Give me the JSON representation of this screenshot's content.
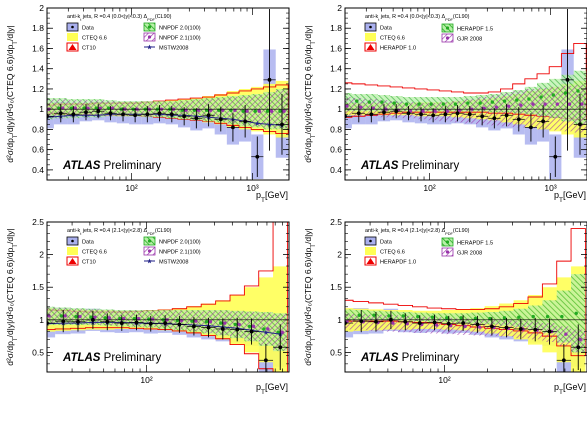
{
  "chart_data": [
    {
      "type": "line",
      "xscale": "log",
      "xlim": [
        20,
        2000
      ],
      "ylim": [
        0.3,
        2.0
      ],
      "yticks": [
        0.4,
        0.6,
        0.8,
        1.0,
        1.2,
        1.4,
        1.6,
        1.8,
        2.0
      ],
      "yticklabels": [
        "0.4",
        "0.6",
        "0.8",
        "1",
        "1.2",
        "1.4",
        "1.6",
        "1.8",
        "2"
      ],
      "xtick_major": [
        100,
        1000
      ],
      "xticklabels": [
        "10²",
        "10³"
      ],
      "xlabel": "p_T[GeV]",
      "ylabel": "d²σ/dp_T/d|y|/d²σ₀(CTEQ 6.6)/dp_T/d|y|",
      "title": "anti-k_t  jets, R =0.4 (0.0<|y|<0.3) Δ_PDF(CL90)",
      "watermark_bold": "ATLAS",
      "watermark": "Preliminary",
      "legend": [
        "Data",
        "CTEQ 6.6",
        "CT10",
        "NNPDF 2.0(100)",
        "NNPDF 2.1(100)",
        "MSTW2008"
      ],
      "x": [
        20,
        26,
        33,
        42,
        53,
        67,
        85,
        107,
        135,
        170,
        215,
        272,
        343,
        433,
        546,
        688,
        868,
        1094,
        1380,
        1750
      ],
      "data": [
        0.93,
        0.96,
        0.95,
        0.97,
        0.98,
        0.96,
        0.95,
        0.94,
        0.95,
        0.96,
        0.95,
        0.93,
        0.91,
        0.94,
        0.9,
        0.82,
        0.88,
        0.53,
        1.29,
        0.85
      ],
      "data_err": [
        0.1,
        0.09,
        0.08,
        0.08,
        0.07,
        0.07,
        0.07,
        0.07,
        0.08,
        0.08,
        0.08,
        0.09,
        0.1,
        0.11,
        0.12,
        0.14,
        0.16,
        0.2,
        0.7,
        0.3
      ],
      "syst": [
        0.12,
        0.11,
        0.1,
        0.09,
        0.09,
        0.09,
        0.09,
        0.09,
        0.1,
        0.1,
        0.1,
        0.11,
        0.12,
        0.13,
        0.15,
        0.17,
        0.2,
        0.22,
        0.3,
        0.33
      ],
      "cteq_up": [
        1.06,
        1.06,
        1.06,
        1.06,
        1.06,
        1.06,
        1.07,
        1.07,
        1.07,
        1.08,
        1.09,
        1.1,
        1.11,
        1.13,
        1.15,
        1.18,
        1.2,
        1.22,
        1.25,
        1.28
      ],
      "ct10_up": [
        1.04,
        1.05,
        1.05,
        1.05,
        1.06,
        1.06,
        1.06,
        1.06,
        1.07,
        1.08,
        1.09,
        1.1,
        1.11,
        1.12,
        1.14,
        1.16,
        1.18,
        1.2,
        1.22,
        1.24
      ],
      "nnpdf_up": [
        1.11,
        1.11,
        1.1,
        1.1,
        1.1,
        1.09,
        1.08,
        1.08,
        1.08,
        1.08,
        1.08,
        1.09,
        1.1,
        1.11,
        1.12,
        1.13,
        1.14,
        1.15,
        1.17,
        1.2
      ],
      "nnpdf_lo": [
        0.9,
        0.91,
        0.91,
        0.92,
        0.92,
        0.93,
        0.93,
        0.93,
        0.92,
        0.92,
        0.91,
        0.9,
        0.89,
        0.88,
        0.87,
        0.85,
        0.83,
        0.82,
        0.8,
        0.8
      ],
      "nnpdf_c": [
        1.0,
        1.01,
        1.01,
        1.01,
        1.01,
        1.01,
        1.0,
        1.0,
        1.0,
        1.0,
        1.0,
        0.99,
        0.99,
        0.99,
        0.99,
        0.99,
        0.98,
        0.98,
        0.98,
        0.98
      ],
      "mstw": [
        0.92,
        0.93,
        0.94,
        0.94,
        0.94,
        0.95,
        0.95,
        0.95,
        0.95,
        0.95,
        0.94,
        0.94,
        0.93,
        0.92,
        0.91,
        0.9,
        0.88,
        0.86,
        0.85,
        0.84
      ]
    },
    {
      "type": "line",
      "xscale": "log",
      "xlim": [
        20,
        2000
      ],
      "ylim": [
        0.3,
        2.0
      ],
      "yticks": [
        0.4,
        0.6,
        0.8,
        1.0,
        1.2,
        1.4,
        1.6,
        1.8,
        2.0
      ],
      "yticklabels": [
        "0.4",
        "0.6",
        "0.8",
        "1",
        "1.2",
        "1.4",
        "1.6",
        "1.8",
        "2"
      ],
      "xtick_major": [
        100,
        1000
      ],
      "xticklabels": [
        "10²",
        "10³"
      ],
      "xlabel": "p_T[GeV]",
      "ylabel": "d²σ/dp_T/d|y|/d²σ₀(CTEQ 6.6)/dp_T/d|y|",
      "title": "anti-k_t  jets, R =0.4 (0.0<|y|<0.3) Δ_PDF(CL90)",
      "watermark_bold": "ATLAS",
      "watermark": "Preliminary",
      "legend": [
        "Data",
        "CTEQ 6.6",
        "HERAPDF 1.0",
        "HERAPDF 1.5",
        "GJR 2008"
      ],
      "x": [
        20,
        26,
        33,
        42,
        53,
        67,
        85,
        107,
        135,
        170,
        215,
        272,
        343,
        433,
        546,
        688,
        868,
        1094,
        1380,
        1750
      ],
      "data": [
        0.93,
        0.96,
        0.95,
        0.97,
        0.98,
        0.96,
        0.95,
        0.94,
        0.95,
        0.96,
        0.95,
        0.93,
        0.91,
        0.94,
        0.9,
        0.82,
        0.88,
        0.53,
        1.29,
        0.85
      ],
      "data_err": [
        0.1,
        0.09,
        0.08,
        0.08,
        0.07,
        0.07,
        0.07,
        0.07,
        0.08,
        0.08,
        0.08,
        0.09,
        0.1,
        0.11,
        0.12,
        0.14,
        0.16,
        0.2,
        0.7,
        0.3
      ],
      "syst": [
        0.12,
        0.11,
        0.1,
        0.09,
        0.09,
        0.09,
        0.09,
        0.09,
        0.1,
        0.1,
        0.1,
        0.11,
        0.12,
        0.13,
        0.15,
        0.17,
        0.2,
        0.22,
        0.3,
        0.33
      ],
      "cteq_up": [
        1.06,
        1.06,
        1.06,
        1.06,
        1.06,
        1.06,
        1.07,
        1.07,
        1.07,
        1.08,
        1.09,
        1.1,
        1.11,
        1.13,
        1.15,
        1.18,
        1.2,
        1.22,
        1.25,
        1.28
      ],
      "hera10_up": [
        1.26,
        1.25,
        1.24,
        1.23,
        1.22,
        1.21,
        1.2,
        1.19,
        1.18,
        1.17,
        1.16,
        1.16,
        1.17,
        1.2,
        1.25,
        1.3,
        1.35,
        1.42,
        1.55,
        1.65
      ],
      "hera10_lo": [
        0.92,
        0.93,
        0.94,
        0.95,
        0.96,
        0.97,
        0.97,
        0.97,
        0.97,
        0.97,
        0.97,
        0.97,
        0.96,
        0.96,
        0.95,
        0.94,
        0.93,
        0.92,
        0.91,
        0.9
      ],
      "hera15_up": [
        1.16,
        1.15,
        1.15,
        1.14,
        1.13,
        1.12,
        1.12,
        1.12,
        1.12,
        1.12,
        1.13,
        1.14,
        1.15,
        1.17,
        1.19,
        1.22,
        1.26,
        1.3,
        1.34,
        1.38
      ],
      "hera15_lo": [
        0.98,
        0.98,
        0.98,
        0.98,
        0.98,
        0.98,
        0.98,
        0.98,
        0.98,
        0.98,
        0.98,
        0.98,
        0.97,
        0.97,
        0.96,
        0.95,
        0.93,
        0.91,
        0.88,
        0.85
      ],
      "hera15_c": [
        1.08,
        1.08,
        1.07,
        1.07,
        1.06,
        1.05,
        1.05,
        1.05,
        1.05,
        1.05,
        1.06,
        1.06,
        1.07,
        1.08,
        1.09,
        1.1,
        1.12,
        1.14,
        1.16,
        1.18
      ],
      "gjr_up": [
        1.12,
        1.11,
        1.1,
        1.09,
        1.08,
        1.07,
        1.06,
        1.06,
        1.07,
        1.08,
        1.1,
        1.12,
        1.14,
        1.16,
        1.18,
        1.2,
        1.21,
        1.22,
        1.23,
        1.24
      ],
      "gjr_lo": [
        0.94,
        0.93,
        0.93,
        0.92,
        0.92,
        0.91,
        0.9,
        0.89,
        0.88,
        0.87,
        0.86,
        0.85,
        0.84,
        0.83,
        0.82,
        0.81,
        0.8,
        0.79,
        0.78,
        0.77
      ],
      "gjr_c": [
        1.03,
        1.02,
        1.01,
        1.0,
        0.99,
        0.98,
        0.98,
        0.98,
        0.98,
        0.99,
        1.0,
        1.01,
        1.02,
        1.03,
        1.04,
        1.05,
        1.05,
        1.05,
        1.05,
        1.05
      ]
    },
    {
      "type": "line",
      "xscale": "log",
      "xlim": [
        20,
        1000
      ],
      "ylim": [
        0.2,
        2.5
      ],
      "yticks": [
        0.5,
        1.0,
        1.5,
        2.0,
        2.5
      ],
      "yticklabels": [
        "0.5",
        "1",
        "1.5",
        "2",
        "2.5"
      ],
      "xtick_major": [
        100
      ],
      "xticklabels": [
        "10²"
      ],
      "xlabel": "p_T[GeV]",
      "ylabel": "d²σ/dp_T/d|y|/d²σ₀(CTEQ 6.6)/dp_T/d|y|",
      "title": "anti-k_t  jets, R =0.4 (2.1<|y|<2.8) Δ_PDF(CL90)",
      "watermark_bold": "ATLAS",
      "watermark": "Preliminary",
      "legend": [
        "Data",
        "CTEQ 6.6",
        "CT10",
        "NNPDF 2.0(100)",
        "NNPDF 2.1(100)",
        "MSTW2008"
      ],
      "x": [
        20,
        26,
        33,
        42,
        53,
        67,
        85,
        107,
        135,
        170,
        215,
        272,
        343,
        433,
        546,
        688,
        868
      ],
      "data": [
        0.95,
        0.98,
        0.97,
        1.0,
        0.97,
        0.95,
        0.96,
        0.94,
        0.95,
        0.93,
        0.9,
        0.88,
        0.86,
        0.85,
        0.82,
        0.38,
        0.58
      ],
      "data_err": [
        0.2,
        0.17,
        0.15,
        0.14,
        0.13,
        0.12,
        0.12,
        0.12,
        0.12,
        0.13,
        0.14,
        0.15,
        0.16,
        0.18,
        0.2,
        0.25,
        0.35
      ],
      "syst": [
        0.22,
        0.2,
        0.18,
        0.17,
        0.16,
        0.15,
        0.15,
        0.15,
        0.15,
        0.16,
        0.17,
        0.18,
        0.19,
        0.2,
        0.22,
        0.25,
        0.3
      ],
      "cteq_up": [
        1.18,
        1.17,
        1.16,
        1.15,
        1.15,
        1.14,
        1.14,
        1.15,
        1.16,
        1.18,
        1.21,
        1.25,
        1.3,
        1.38,
        1.5,
        1.65,
        1.82
      ],
      "ct10_up": [
        1.15,
        1.14,
        1.13,
        1.12,
        1.12,
        1.12,
        1.13,
        1.14,
        1.15,
        1.17,
        1.2,
        1.24,
        1.29,
        1.38,
        1.52,
        1.75,
        2.5
      ],
      "nnpdf_up": [
        1.2,
        1.19,
        1.18,
        1.17,
        1.16,
        1.15,
        1.15,
        1.15,
        1.15,
        1.15,
        1.15,
        1.15,
        1.15,
        1.14,
        1.13,
        1.12,
        1.1
      ],
      "nnpdf_lo": [
        0.92,
        0.92,
        0.92,
        0.92,
        0.91,
        0.9,
        0.89,
        0.88,
        0.86,
        0.84,
        0.82,
        0.79,
        0.76,
        0.72,
        0.67,
        0.6,
        0.52
      ],
      "nnpdf_c": [
        1.06,
        1.06,
        1.05,
        1.04,
        1.03,
        1.02,
        1.02,
        1.01,
        1.0,
        0.99,
        0.98,
        0.97,
        0.95,
        0.93,
        0.9,
        0.86,
        0.81
      ],
      "mstw": [
        0.94,
        0.95,
        0.95,
        0.96,
        0.96,
        0.96,
        0.95,
        0.95,
        0.94,
        0.93,
        0.92,
        0.91,
        0.89,
        0.87,
        0.84,
        0.81,
        0.78
      ]
    },
    {
      "type": "line",
      "xscale": "log",
      "xlim": [
        20,
        1000
      ],
      "ylim": [
        0.2,
        2.5
      ],
      "yticks": [
        0.5,
        1.0,
        1.5,
        2.0,
        2.5
      ],
      "yticklabels": [
        "0.5",
        "1",
        "1.5",
        "2",
        "2.5"
      ],
      "xtick_major": [
        100
      ],
      "xticklabels": [
        "10²"
      ],
      "xlabel": "p_T[GeV]",
      "ylabel": "d²σ/dp_T/d|y|/d²σ₀(CTEQ 6.6)/dp_T/d|y|",
      "title": "anti-k_t  jets, R =0.4 (2.1<|y|<2.8) Δ_PDF(CL90)",
      "watermark_bold": "ATLAS",
      "watermark": "Preliminary",
      "legend": [
        "Data",
        "CTEQ 6.6",
        "HERAPDF 1.0",
        "HERAPDF 1.5",
        "GJR 2008"
      ],
      "x": [
        20,
        26,
        33,
        42,
        53,
        67,
        85,
        107,
        135,
        170,
        215,
        272,
        343,
        433,
        546,
        688,
        868
      ],
      "data": [
        0.95,
        0.98,
        0.97,
        1.0,
        0.97,
        0.95,
        0.96,
        0.94,
        0.95,
        0.93,
        0.9,
        0.88,
        0.86,
        0.85,
        0.82,
        0.38,
        0.58
      ],
      "data_err": [
        0.2,
        0.17,
        0.15,
        0.14,
        0.13,
        0.12,
        0.12,
        0.12,
        0.12,
        0.13,
        0.14,
        0.15,
        0.16,
        0.18,
        0.2,
        0.25,
        0.35
      ],
      "syst": [
        0.22,
        0.2,
        0.18,
        0.17,
        0.16,
        0.15,
        0.15,
        0.15,
        0.15,
        0.16,
        0.17,
        0.18,
        0.19,
        0.2,
        0.22,
        0.25,
        0.3
      ],
      "cteq_up": [
        1.18,
        1.17,
        1.16,
        1.15,
        1.15,
        1.14,
        1.14,
        1.15,
        1.16,
        1.18,
        1.21,
        1.25,
        1.3,
        1.38,
        1.5,
        1.65,
        1.82
      ],
      "hera10_up": [
        1.3,
        1.28,
        1.26,
        1.24,
        1.22,
        1.2,
        1.18,
        1.17,
        1.16,
        1.16,
        1.17,
        1.2,
        1.25,
        1.35,
        1.55,
        1.9,
        2.4
      ],
      "hera10_lo": [
        0.98,
        0.98,
        0.98,
        0.98,
        0.97,
        0.96,
        0.95,
        0.93,
        0.91,
        0.89,
        0.87,
        0.85,
        0.83,
        0.8,
        0.75,
        0.6,
        0.45
      ],
      "hera15_up": [
        1.16,
        1.15,
        1.14,
        1.13,
        1.12,
        1.11,
        1.1,
        1.1,
        1.1,
        1.11,
        1.12,
        1.14,
        1.17,
        1.22,
        1.3,
        1.45,
        1.7
      ],
      "hera15_lo": [
        0.99,
        0.99,
        0.99,
        0.99,
        0.99,
        0.98,
        0.97,
        0.96,
        0.95,
        0.94,
        0.93,
        0.91,
        0.89,
        0.86,
        0.8,
        0.65,
        0.5
      ],
      "hera15_c": [
        1.08,
        1.07,
        1.07,
        1.06,
        1.06,
        1.05,
        1.04,
        1.03,
        1.03,
        1.02,
        1.02,
        1.03,
        1.04,
        1.05,
        1.05,
        1.05,
        1.1
      ],
      "gjr_up": [
        1.1,
        1.09,
        1.08,
        1.07,
        1.06,
        1.05,
        1.04,
        1.03,
        1.02,
        1.01,
        1.0,
        0.99,
        0.98,
        0.97,
        0.95,
        0.9,
        0.85
      ],
      "gjr_lo": [
        0.85,
        0.84,
        0.83,
        0.82,
        0.81,
        0.8,
        0.79,
        0.78,
        0.77,
        0.76,
        0.75,
        0.74,
        0.72,
        0.7,
        0.66,
        0.6,
        0.5
      ],
      "gjr_c": [
        0.97,
        0.97,
        0.96,
        0.95,
        0.94,
        0.93,
        0.92,
        0.91,
        0.9,
        0.89,
        0.88,
        0.87,
        0.86,
        0.84,
        0.82,
        0.78,
        0.7
      ]
    }
  ]
}
